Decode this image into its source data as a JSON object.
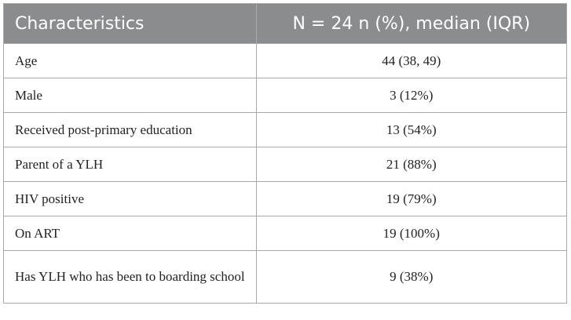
{
  "table": {
    "header": {
      "col1": "Characteristics",
      "col2": "N = 24 n (%), median (IQR)"
    },
    "rows": [
      {
        "label": "Age",
        "value": "44 (38, 49)"
      },
      {
        "label": "Male",
        "value": "3 (12%)"
      },
      {
        "label": "Received post-primary education",
        "value": "13 (54%)"
      },
      {
        "label": "Parent of a YLH",
        "value": "21 (88%)"
      },
      {
        "label": "HIV positive",
        "value": "19 (79%)"
      },
      {
        "label": "On ART",
        "value": "19 (100%)"
      },
      {
        "label": "Has YLH who has been to boarding school",
        "value": "9 (38%)"
      }
    ]
  }
}
